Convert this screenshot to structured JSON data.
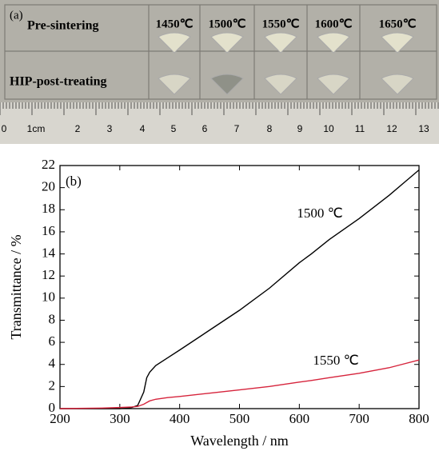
{
  "panel_a": {
    "label": "(a)",
    "row_labels": [
      "Pre-sintering",
      "HIP-post-treating"
    ],
    "temperatures": [
      "1450℃",
      "1500℃",
      "1550℃",
      "1600℃",
      "1650℃"
    ],
    "ruler_labels": [
      "0",
      "1cm",
      "2",
      "3",
      "4",
      "5",
      "6",
      "7",
      "8",
      "9",
      "10",
      "11",
      "12",
      "13"
    ]
  },
  "chart_data": {
    "type": "line",
    "title": "(b)",
    "xlabel": "Wavelength / nm",
    "ylabel": "Transmittance / %",
    "xlim": [
      200,
      800
    ],
    "ylim": [
      0,
      22
    ],
    "xticks": [
      200,
      300,
      400,
      500,
      600,
      700,
      800
    ],
    "yticks": [
      0,
      2,
      4,
      6,
      8,
      10,
      12,
      14,
      16,
      18,
      20,
      22
    ],
    "x": [
      200,
      270,
      300,
      320,
      330,
      340,
      345,
      350,
      360,
      380,
      400,
      450,
      500,
      550,
      600,
      620,
      650,
      700,
      750,
      800
    ],
    "series": [
      {
        "name": "1500 ℃",
        "color": "#000000",
        "values": [
          0,
          0,
          0,
          0.1,
          0.3,
          1.5,
          2.8,
          3.3,
          3.9,
          4.6,
          5.3,
          7.1,
          8.9,
          10.9,
          13.2,
          14,
          15.3,
          17.2,
          19.3,
          21.6
        ]
      },
      {
        "name": "1550 ℃",
        "color": "#d6243c",
        "values": [
          0,
          0.05,
          0.1,
          0.15,
          0.2,
          0.4,
          0.55,
          0.7,
          0.85,
          1.0,
          1.1,
          1.4,
          1.7,
          2.0,
          2.4,
          2.55,
          2.8,
          3.2,
          3.7,
          4.4
        ]
      }
    ]
  }
}
